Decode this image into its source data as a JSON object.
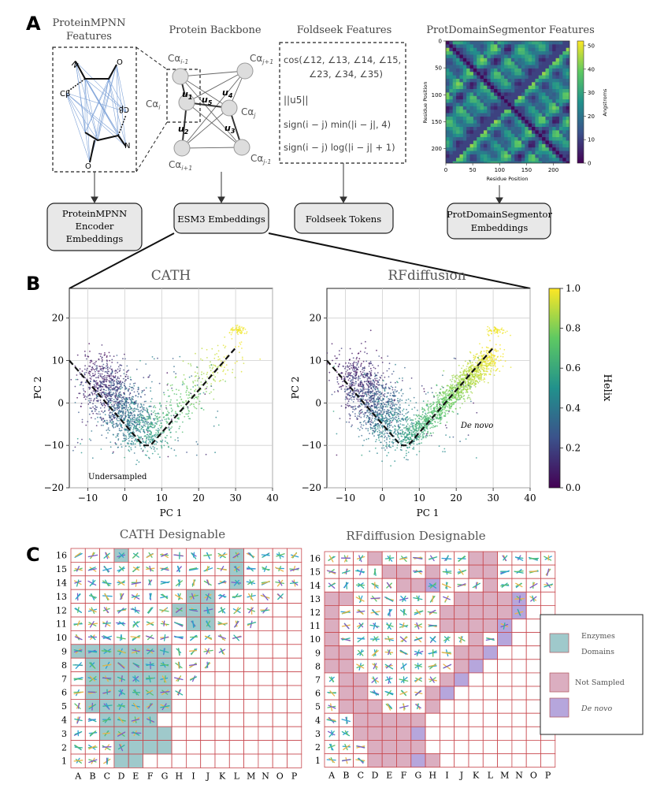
{
  "panel_labels": {
    "a": "A",
    "b": "B",
    "c": "C"
  },
  "panel_a": {
    "proteinmpnn": {
      "title_line1": "ProteinMPNN",
      "title_line2": "Features",
      "label_n1": "N",
      "label_o1": "O",
      "label_cb1": "Cβ",
      "label_cb2": "Cβ",
      "label_n2": "N",
      "label_o2": "O"
    },
    "backbone": {
      "title": "Protein Backbone",
      "ca_i_minus_1": "Cα",
      "ca_i_minus_1_sub": "i-1",
      "ca_j_plus_1": "Cα",
      "ca_j_plus_1_sub": "j+1",
      "ca_i": "Cα",
      "ca_i_sub": "i",
      "ca_j": "Cα",
      "ca_j_sub": "j",
      "ca_i_plus_1": "Cα",
      "ca_i_plus_1_sub": "i+1",
      "ca_j_minus_1": "Cα",
      "ca_j_minus_1_sub": "j-1",
      "u1": "u",
      "u1_sub": "1",
      "u2": "u",
      "u2_sub": "2",
      "u3": "u",
      "u3_sub": "3",
      "u4": "u",
      "u4_sub": "4",
      "u5": "u",
      "u5_sub": "5"
    },
    "foldseek": {
      "title": "Foldseek Features",
      "f1_line1": "cos(∠12, ∠13, ∠14, ∠15,",
      "f1_line2": "∠23, ∠34, ∠35)",
      "f2": "||u5||",
      "f3": "sign(i − j) min(|i − j|, 4)",
      "f4": "sign(i − j) log(|i − j| + 1)"
    },
    "pds": {
      "title": "ProtDomainSegmentor Features",
      "ylabel": "Residue Position",
      "xlabel": "Residue Position",
      "cbar_label": "Angstroms",
      "xticks": [
        "0",
        "50",
        "100",
        "150",
        "200"
      ],
      "yticks": [
        "0",
        "50",
        "100",
        "150",
        "200"
      ],
      "cticks": [
        "0",
        "10",
        "20",
        "30",
        "40",
        "50"
      ]
    },
    "boxes": {
      "pmpnn_line1": "ProteinMPNN",
      "pmpnn_line2": "Encoder",
      "pmpnn_line3": "Embeddings",
      "esm3": "ESM3 Embeddings",
      "foldseek": "Foldseek Tokens",
      "pds_line1": "ProtDomainSegmentor",
      "pds_line2": "Embeddings"
    }
  },
  "chart_data": [
    {
      "type": "scatter",
      "title": "CATH",
      "xlabel": "PC 1",
      "ylabel": "PC 2",
      "xlim": [
        -15,
        40
      ],
      "ylim": [
        -20,
        27
      ],
      "xticks": [
        "−10",
        "0",
        "10",
        "20",
        "30",
        "40"
      ],
      "yticks": [
        "20",
        "10",
        "0",
        "−10",
        "−20"
      ],
      "grid": true,
      "annotation": "Undersampled",
      "boundary": [
        [
          -15,
          10
        ],
        [
          5,
          -10
        ],
        [
          7,
          -10
        ],
        [
          30,
          13
        ]
      ]
    },
    {
      "type": "scatter",
      "title": "RFdiffusion",
      "xlabel": "PC 1",
      "ylabel": "PC 2",
      "xlim": [
        -15,
        40
      ],
      "ylim": [
        -20,
        27
      ],
      "xticks": [
        "−10",
        "0",
        "10",
        "20",
        "30",
        "40"
      ],
      "yticks": [
        "20",
        "10",
        "0",
        "−10",
        "−20"
      ],
      "grid": true,
      "annotation": "De novo",
      "boundary": [
        [
          -15,
          10
        ],
        [
          5,
          -10
        ],
        [
          7,
          -10
        ],
        [
          30,
          13
        ]
      ],
      "colorbar": {
        "label": "Helix",
        "range": [
          0.0,
          1.0
        ],
        "ticks": [
          "1.0",
          "0.8",
          "0.6",
          "0.4",
          "0.2",
          "0.0"
        ]
      }
    },
    {
      "type": "heatmap",
      "title": "CATH Designable",
      "columns": [
        "A",
        "B",
        "C",
        "D",
        "E",
        "F",
        "G",
        "H",
        "I",
        "J",
        "K",
        "L",
        "M",
        "N",
        "O",
        "P"
      ],
      "rows": [
        "16",
        "15",
        "14",
        "13",
        "12",
        "11",
        "10",
        "9",
        "8",
        "7",
        "6",
        "5",
        "4",
        "3",
        "2",
        "1"
      ],
      "enzyme_cells": [
        "D16",
        "L16",
        "L15",
        "L14",
        "I13",
        "J13",
        "H12",
        "I12",
        "J12",
        "I11",
        "J11",
        "A9",
        "B9",
        "C9",
        "D9",
        "E9",
        "F9",
        "G9",
        "B8",
        "C8",
        "D8",
        "E8",
        "F8",
        "G8",
        "B7",
        "C7",
        "D7",
        "E7",
        "F7",
        "G7",
        "B6",
        "C6",
        "D6",
        "E6",
        "F6",
        "G6",
        "B5",
        "C5",
        "D5",
        "E5",
        "F5",
        "G5",
        "C4",
        "D4",
        "E4",
        "F4",
        "C3",
        "D3",
        "E3",
        "F3",
        "G3",
        "D2",
        "E2",
        "F2",
        "G2",
        "D1",
        "E1"
      ],
      "thumbnail_cells": "triangle"
    },
    {
      "type": "heatmap",
      "title": "RFdiffusion Designable",
      "columns": [
        "A",
        "B",
        "C",
        "D",
        "E",
        "F",
        "G",
        "H",
        "I",
        "J",
        "K",
        "L",
        "M",
        "N",
        "O",
        "P"
      ],
      "rows": [
        "16",
        "15",
        "14",
        "13",
        "12",
        "11",
        "10",
        "9",
        "8",
        "7",
        "6",
        "5",
        "4",
        "3",
        "2",
        "1"
      ],
      "not_sampled_cells": [
        "D16",
        "K16",
        "L16",
        "E15",
        "F15",
        "H15",
        "K15",
        "L15",
        "L14",
        "F14",
        "G14",
        "A13",
        "B13",
        "J13",
        "K13",
        "L13",
        "M13",
        "A12",
        "I12",
        "J12",
        "K12",
        "L12",
        "M12",
        "A11",
        "I11",
        "J11",
        "K11",
        "L11",
        "A10",
        "K10",
        "A9",
        "B9",
        "J9",
        "K9",
        "A8",
        "B8",
        "J8",
        "B7",
        "C7",
        "I7",
        "B6",
        "C6",
        "H6",
        "B5",
        "C5",
        "D5",
        "H5",
        "C4",
        "D4",
        "E4",
        "F4",
        "G4",
        "C3",
        "D3",
        "E3",
        "F3",
        "D2",
        "E2",
        "F2",
        "G2",
        "D1",
        "E1",
        "F1",
        "H1"
      ],
      "de_novo_cells": [
        "H14",
        "N13",
        "N12",
        "M11",
        "M10",
        "L9",
        "K8",
        "J7",
        "I6",
        "G3",
        "G1"
      ],
      "thumbnail_cells": "triangle"
    }
  ],
  "legend": {
    "enzymes_line1": "Enzymes",
    "enzymes_line2": "Domains",
    "not_sampled": "Not Sampled",
    "de_novo": "De novo",
    "colors": {
      "enzymes": "#9fc9cb",
      "not_sampled": "#dbaec0",
      "de_novo": "#b6a6dc"
    }
  }
}
